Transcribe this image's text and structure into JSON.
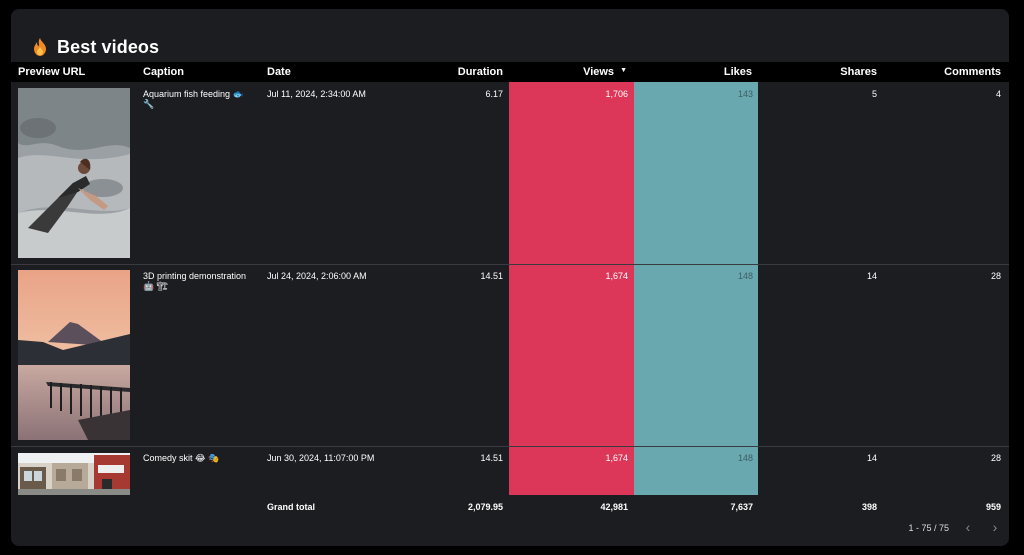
{
  "title": "Best videos",
  "columns": {
    "preview": "Preview URL",
    "caption": "Caption",
    "date": "Date",
    "duration": "Duration",
    "views": "Views",
    "likes": "Likes",
    "shares": "Shares",
    "comments": "Comments"
  },
  "sort_indicator": "▼",
  "rows": [
    {
      "caption_line1": "Aquarium fish feeding 🐟",
      "caption_line2": "🔧",
      "date": "Jul 11, 2024, 2:34:00 AM",
      "duration": "6.17",
      "views": "1,706",
      "likes": "143",
      "shares": "5",
      "comments": "4"
    },
    {
      "caption_line1": "3D printing demonstration",
      "caption_line2": "🤖 🏗",
      "date": "Jul 24, 2024, 2:06:00 AM",
      "duration": "14.51",
      "views": "1,674",
      "likes": "148",
      "shares": "14",
      "comments": "28"
    },
    {
      "caption_line1": "Comedy skit 😂 🎭",
      "caption_line2": "",
      "date": "Jun 30, 2024, 11:07:00 PM",
      "duration": "14.51",
      "views": "1,674",
      "likes": "148",
      "shares": "14",
      "comments": "28"
    }
  ],
  "totals": {
    "label": "Grand total",
    "duration": "2,079.95",
    "views": "42,981",
    "likes": "7,637",
    "shares": "398",
    "comments": "959"
  },
  "pagination": {
    "range": "1 - 75 / 75",
    "prev": "‹",
    "next": "›"
  },
  "colors": {
    "views_bar": "#dc3658",
    "likes_bar": "#6aa8b0"
  }
}
